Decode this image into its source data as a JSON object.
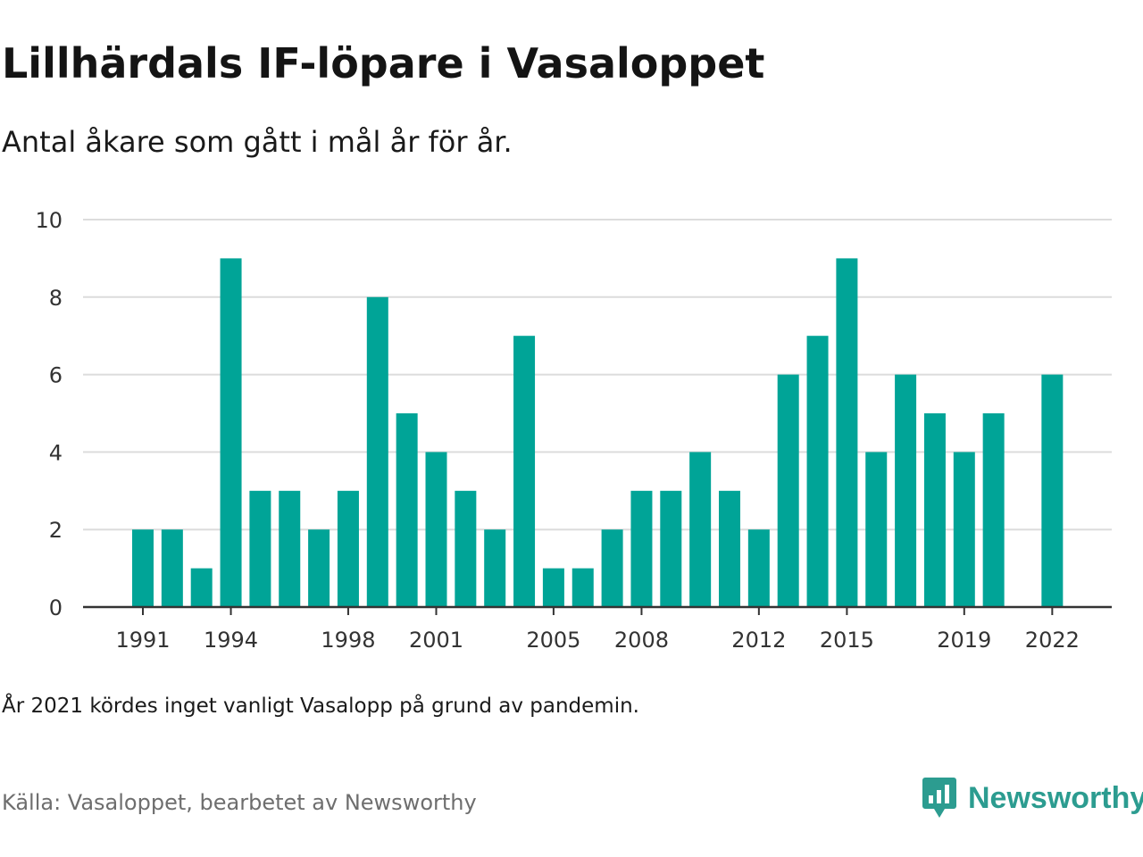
{
  "brand": {
    "name": "Newsworthy",
    "icon": "newsworthy-logo-icon",
    "color": "#2c9c90"
  },
  "note": "År 2021 kördes inget vanligt Vasalopp på grund av pandemin.",
  "source": "Källa: Vasaloppet, bearbetet av Newsworthy",
  "chart_data": {
    "type": "bar",
    "title": "Lillhärdals IF-löpare i Vasaloppet",
    "subtitle": "Antal åkare som gått i mål år för år.",
    "xlabel": "",
    "ylabel": "",
    "categories": [
      1991,
      1992,
      1993,
      1994,
      1995,
      1996,
      1997,
      1998,
      1999,
      2000,
      2001,
      2002,
      2003,
      2004,
      2005,
      2006,
      2007,
      2008,
      2009,
      2010,
      2011,
      2012,
      2013,
      2014,
      2015,
      2016,
      2017,
      2018,
      2019,
      2020,
      2021,
      2022
    ],
    "values": [
      2,
      2,
      1,
      9,
      3,
      3,
      2,
      3,
      8,
      5,
      4,
      3,
      2,
      7,
      1,
      1,
      2,
      3,
      3,
      4,
      3,
      2,
      6,
      7,
      9,
      4,
      6,
      5,
      4,
      5,
      0,
      6
    ],
    "x_tick_labels": [
      "1991",
      "1994",
      "1998",
      "2001",
      "2005",
      "2008",
      "2012",
      "2015",
      "2019",
      "2022"
    ],
    "y_ticks": [
      0,
      2,
      4,
      6,
      8,
      10
    ],
    "ylim": [
      0,
      10
    ],
    "grid": true,
    "bar_color": "#00a497",
    "grid_color": "#dcdcdc",
    "axis_color": "#333333"
  }
}
